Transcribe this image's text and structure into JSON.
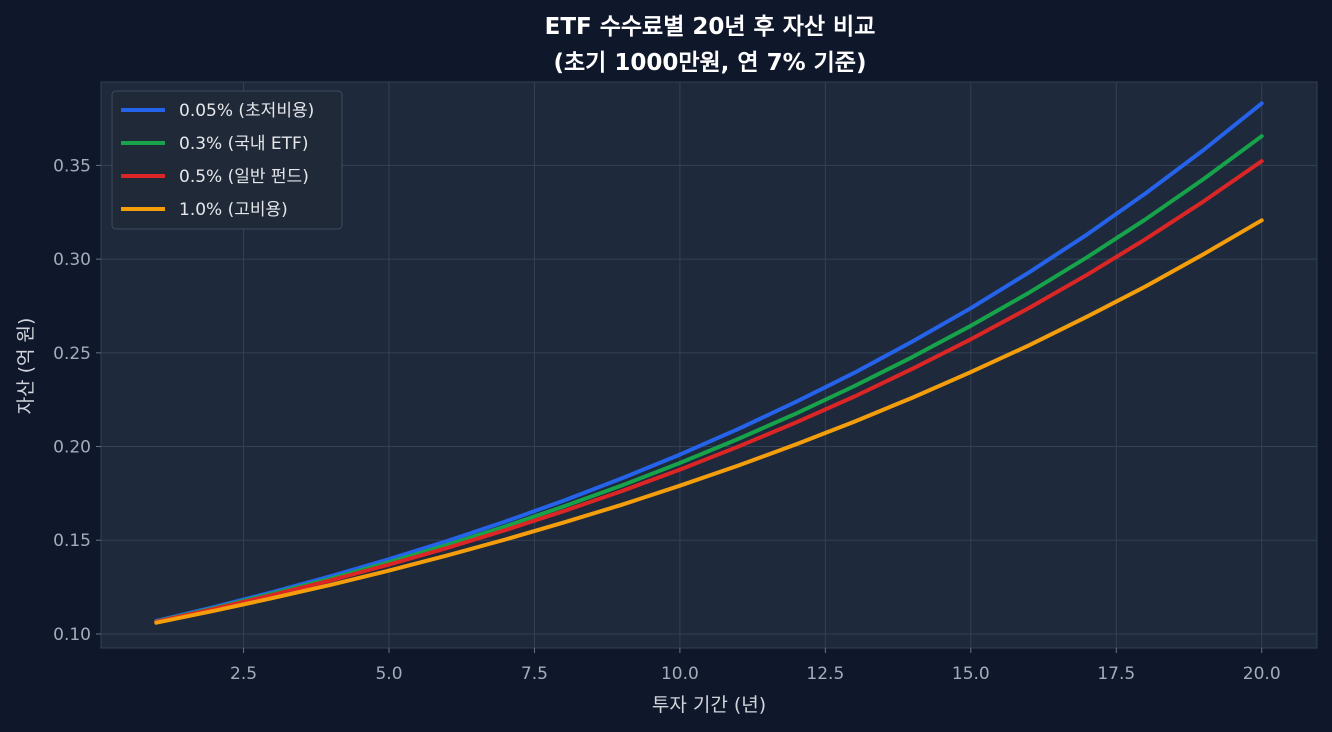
{
  "chart_data": {
    "type": "line",
    "title": "ETF 수수료별 20년 후 자산 비교",
    "subtitle": "(초기 1000만원, 연 7% 기준)",
    "xlabel": "투자 기간 (년)",
    "ylabel": "자산 (억 원)",
    "xlim": [
      0.05,
      20.95
    ],
    "ylim": [
      0.0925,
      0.3945
    ],
    "xticks": [
      "2.5",
      "5.0",
      "7.5",
      "10.0",
      "12.5",
      "15.0",
      "17.5",
      "20.0"
    ],
    "yticks": [
      "0.10",
      "0.15",
      "0.20",
      "0.25",
      "0.30",
      "0.35"
    ],
    "grid": true,
    "legend_position": "top-left",
    "x": [
      1,
      2,
      3,
      4,
      5,
      6,
      7,
      8,
      9,
      10,
      11,
      12,
      13,
      14,
      15,
      16,
      17,
      18,
      19,
      20
    ],
    "series": [
      {
        "name": "0.05% (초저비용)",
        "color": "#2563eb",
        "values": [
          0.1069,
          0.1144,
          0.1223,
          0.1308,
          0.1399,
          0.1496,
          0.16,
          0.1711,
          0.183,
          0.1957,
          0.2093,
          0.2239,
          0.2394,
          0.2561,
          0.2738,
          0.2929,
          0.3132,
          0.335,
          0.3582,
          0.3831
        ]
      },
      {
        "name": "0.3% (국내 ETF)",
        "color": "#16a34a",
        "values": [
          0.1067,
          0.1138,
          0.1215,
          0.1296,
          0.1383,
          0.1475,
          0.1574,
          0.168,
          0.1792,
          0.1912,
          0.204,
          0.2177,
          0.2323,
          0.2478,
          0.2644,
          0.2821,
          0.301,
          0.3212,
          0.3427,
          0.3656
        ]
      },
      {
        "name": "0.5% (일반 펀드)",
        "color": "#dc2626",
        "values": [
          0.1065,
          0.1134,
          0.1208,
          0.1286,
          0.137,
          0.1459,
          0.1554,
          0.1655,
          0.1762,
          0.1877,
          0.1999,
          0.2129,
          0.2267,
          0.2415,
          0.2572,
          0.2739,
          0.2917,
          0.3106,
          0.3308,
          0.3523
        ]
      },
      {
        "name": "1.0% (고비용)",
        "color": "#f59e0b",
        "values": [
          0.106,
          0.1124,
          0.1191,
          0.1262,
          0.1338,
          0.1419,
          0.1504,
          0.1594,
          0.1689,
          0.1791,
          0.1898,
          0.2012,
          0.2133,
          0.2261,
          0.2397,
          0.254,
          0.2693,
          0.2854,
          0.3026,
          0.3207
        ]
      }
    ]
  }
}
